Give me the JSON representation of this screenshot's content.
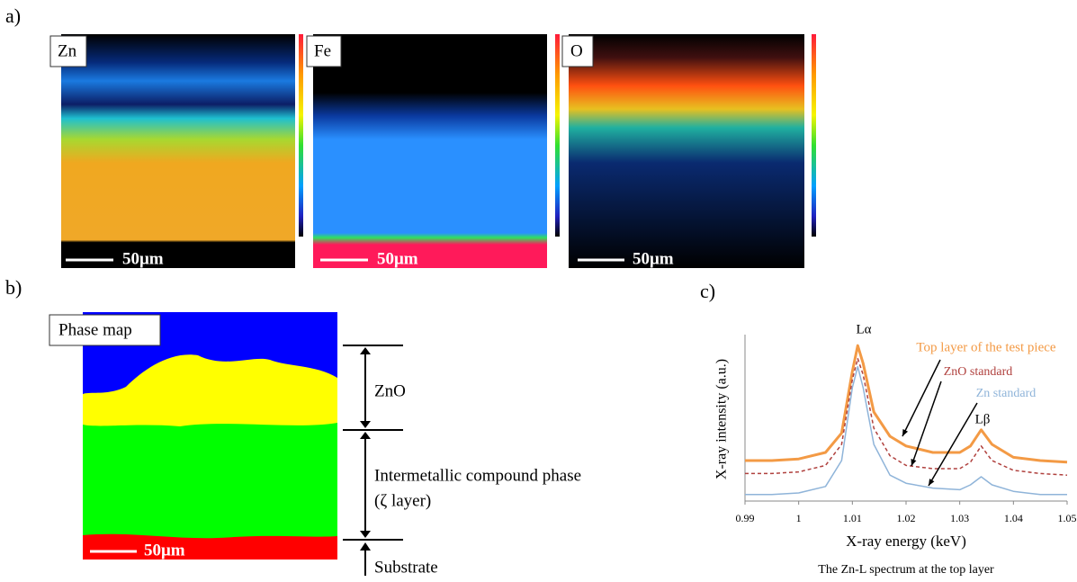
{
  "panels": [
    "a)",
    "b)",
    "c)"
  ],
  "maps": [
    {
      "label": "Zn",
      "scale": "50μm"
    },
    {
      "label": "Fe",
      "scale": "50μm"
    },
    {
      "label": "O",
      "scale": "50μm"
    }
  ],
  "phase_map": {
    "label": "Phase map",
    "scale": "50μm",
    "layers": [
      "ZnO",
      "Intermetallic compound phase",
      "(ζ layer)",
      "Substrate"
    ]
  },
  "chart_data": {
    "type": "line",
    "xlabel": "X-ray energy (keV)",
    "ylabel": "X-ray intensity (a.u.)",
    "caption": "The Zn-L spectrum at the top layer",
    "annotations": [
      "Lα",
      "Lβ"
    ],
    "xlim": [
      0.99,
      1.05
    ],
    "xticks": [
      0.99,
      1,
      1.01,
      1.02,
      1.03,
      1.04,
      1.05
    ],
    "ylim": [
      0,
      10
    ],
    "x": [
      0.99,
      0.995,
      1.0,
      1.005,
      1.008,
      1.01,
      1.011,
      1.012,
      1.014,
      1.017,
      1.02,
      1.025,
      1.03,
      1.032,
      1.034,
      1.036,
      1.04,
      1.045,
      1.05
    ],
    "series": [
      {
        "name": "Top layer of the test piece",
        "color": "#f39a45",
        "values": [
          2.5,
          2.5,
          2.6,
          3.0,
          4.2,
          8.0,
          9.6,
          8.5,
          5.5,
          4.0,
          3.4,
          3.0,
          3.0,
          3.4,
          4.4,
          3.5,
          2.7,
          2.5,
          2.4
        ]
      },
      {
        "name": "ZnO standard",
        "color": "#b0413e",
        "values": [
          1.7,
          1.7,
          1.8,
          2.2,
          3.5,
          7.5,
          8.8,
          7.8,
          4.5,
          2.8,
          2.2,
          2.0,
          2.0,
          2.4,
          3.4,
          2.5,
          1.9,
          1.7,
          1.6
        ]
      },
      {
        "name": "Zn standard",
        "color": "#8fb4d9",
        "values": [
          0.4,
          0.4,
          0.5,
          0.9,
          2.5,
          7.0,
          8.3,
          7.0,
          3.5,
          1.6,
          1.1,
          0.8,
          0.7,
          1.0,
          1.5,
          1.0,
          0.6,
          0.4,
          0.4
        ]
      }
    ]
  }
}
